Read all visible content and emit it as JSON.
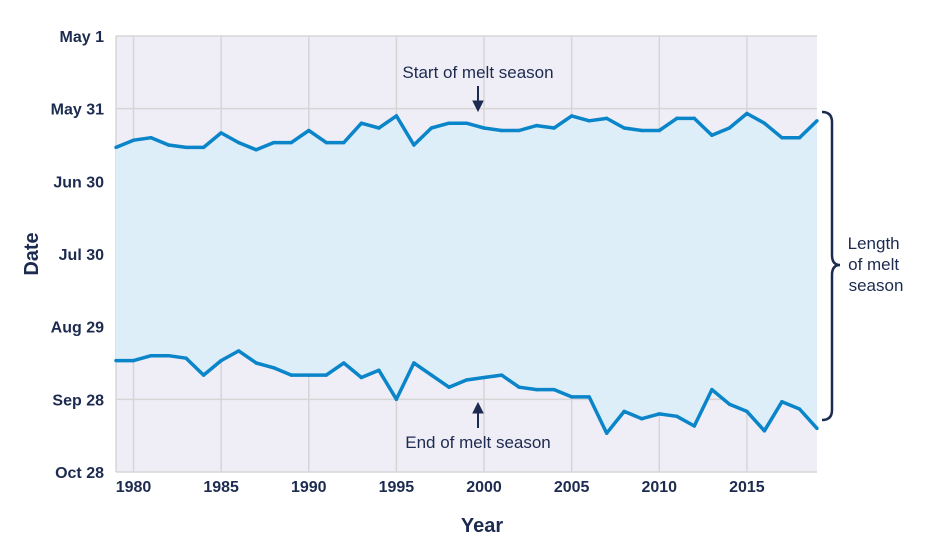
{
  "chart_data": {
    "type": "area",
    "xlabel": "Year",
    "ylabel": "Date",
    "xlim": [
      1979,
      2019
    ],
    "ylim": [
      "May 1",
      "Oct 28"
    ],
    "y_inverted": true,
    "grid": true,
    "x_ticks": [
      "1980",
      "1985",
      "1990",
      "1995",
      "2000",
      "2005",
      "2010",
      "2015"
    ],
    "y_ticks": [
      "May 1",
      "May 31",
      "Jun 30",
      "Jul 30",
      "Aug 29",
      "Sep 28",
      "Oct 28"
    ],
    "x": [
      1979,
      1980,
      1981,
      1982,
      1983,
      1984,
      1985,
      1986,
      1987,
      1988,
      1989,
      1990,
      1991,
      1992,
      1993,
      1994,
      1995,
      1996,
      1997,
      1998,
      1999,
      2000,
      2001,
      2002,
      2003,
      2004,
      2005,
      2006,
      2007,
      2008,
      2009,
      2010,
      2011,
      2012,
      2013,
      2014,
      2015,
      2016,
      2017,
      2018,
      2019
    ],
    "series": [
      {
        "name": "Start of melt season",
        "values": [
          "Jun 16",
          "Jun 13",
          "Jun 12",
          "Jun 15",
          "Jun 16",
          "Jun 16",
          "Jun 10",
          "Jun 14",
          "Jun 17",
          "Jun 14",
          "Jun 14",
          "Jun 9",
          "Jun 14",
          "Jun 14",
          "Jun 6",
          "Jun 8",
          "Jun 3",
          "Jun 15",
          "Jun 8",
          "Jun 6",
          "Jun 6",
          "Jun 8",
          "Jun 9",
          "Jun 9",
          "Jun 7",
          "Jun 8",
          "Jun 3",
          "Jun 5",
          "Jun 4",
          "Jun 8",
          "Jun 9",
          "Jun 9",
          "Jun 4",
          "Jun 4",
          "Jun 11",
          "Jun 8",
          "Jun 2",
          "Jun 6",
          "Jun 12",
          "Jun 12",
          "Jun 5"
        ]
      },
      {
        "name": "End of melt season",
        "values": [
          "Sep 12",
          "Sep 12",
          "Sep 10",
          "Sep 10",
          "Sep 11",
          "Sep 18",
          "Sep 12",
          "Sep 8",
          "Sep 13",
          "Sep 15",
          "Sep 18",
          "Sep 18",
          "Sep 18",
          "Sep 13",
          "Sep 19",
          "Sep 16",
          "Sep 28",
          "Sep 13",
          "Sep 18",
          "Sep 23",
          "Sep 20",
          "Sep 19",
          "Sep 18",
          "Sep 23",
          "Sep 24",
          "Sep 24",
          "Sep 27",
          "Sep 27",
          "Oct 12",
          "Oct 3",
          "Oct 6",
          "Oct 4",
          "Oct 5",
          "Oct 9",
          "Sep 24",
          "Sep 30",
          "Oct 3",
          "Oct 11",
          "Sep 29",
          "Oct 2",
          "Oct 10"
        ]
      }
    ],
    "annotations": {
      "start": "Start of melt season",
      "end": "End of melt season",
      "bracket": [
        "Length",
        "of melt",
        "season"
      ]
    },
    "colors": {
      "line": "#0a85c9",
      "fill": "#ddeef8",
      "plot_bg": "#efedf6",
      "grid": "#d6d6d6",
      "text": "#1c2b4f"
    }
  }
}
